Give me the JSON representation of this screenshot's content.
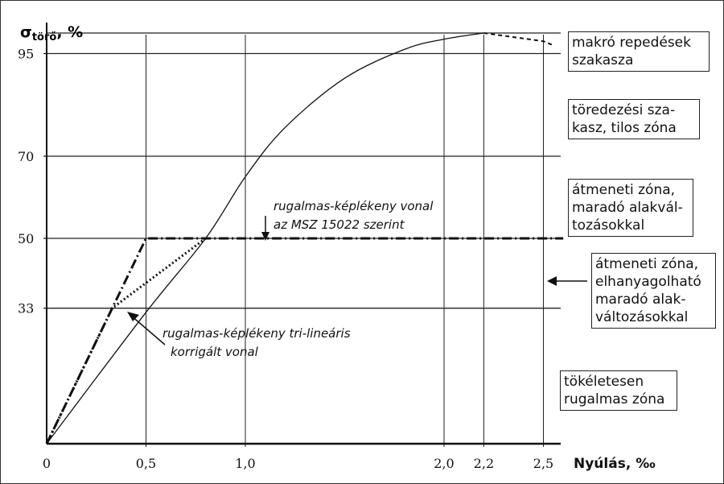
{
  "chart_data": {
    "type": "line",
    "ylabel": {
      "main": "σ",
      "sub": "törő",
      "unit": ", %"
    },
    "xlabel": "Nyúlás, ‰",
    "x_ticks": [
      {
        "value": 0,
        "label": "0"
      },
      {
        "value": 0.5,
        "label": "0,5"
      },
      {
        "value": 1.0,
        "label": "1,0"
      },
      {
        "value": 2.0,
        "label": "2,0"
      },
      {
        "value": 2.2,
        "label": "2,2"
      },
      {
        "value": 2.5,
        "label": "2,5"
      }
    ],
    "y_ticks": [
      {
        "value": 33,
        "label": "33"
      },
      {
        "value": 50,
        "label": "50"
      },
      {
        "value": 70,
        "label": "70"
      },
      {
        "value": 95,
        "label": "95"
      }
    ],
    "xlim": [
      0,
      2.6
    ],
    "ylim": [
      0,
      100
    ],
    "grid": true,
    "series": [
      {
        "style": "solid",
        "x": [
          0,
          0.5,
          0.8,
          1.0,
          1.2,
          1.5,
          1.8,
          2.0,
          2.2
        ],
        "y": [
          0,
          32,
          50,
          65,
          77,
          89,
          96,
          98.5,
          100
        ]
      },
      {
        "style": "dashed",
        "x": [
          2.2,
          2.35,
          2.5,
          2.55
        ],
        "y": [
          100,
          99,
          98,
          97
        ]
      },
      {
        "style": "dash-dot",
        "x": [
          0,
          0.5,
          2.6
        ],
        "y": [
          0,
          50,
          50
        ]
      },
      {
        "style": "dotted",
        "x": [
          0,
          0.33,
          0.8
        ],
        "y": [
          0,
          33,
          50
        ]
      }
    ],
    "annotations": [
      {
        "id": "msz",
        "lines": [
          "rugalmas-képlékeny vonal",
          "az MSZ 15022 szerint"
        ]
      },
      {
        "id": "trilin",
        "lines": [
          "rugalmas-képlékeny tri-lineáris",
          "korrigált vonal"
        ]
      }
    ]
  },
  "zones": [
    {
      "id": "makro",
      "lines": [
        "makró repedések",
        "szakasza"
      ]
    },
    {
      "id": "toredezes",
      "lines": [
        "töredezési sza-",
        "kasz, tilos zóna"
      ]
    },
    {
      "id": "atmeneti-marado",
      "lines": [
        "átmeneti zóna,",
        "maradó alakvál-",
        "tozásokkal"
      ]
    },
    {
      "id": "atmeneti-elhanyagolhato",
      "lines": [
        "átmeneti zóna,",
        "elhanyagolható",
        "maradó alak-",
        "változásokkal"
      ]
    },
    {
      "id": "rugalmas",
      "lines": [
        "tökéletesen",
        "rugalmas zóna"
      ]
    }
  ]
}
